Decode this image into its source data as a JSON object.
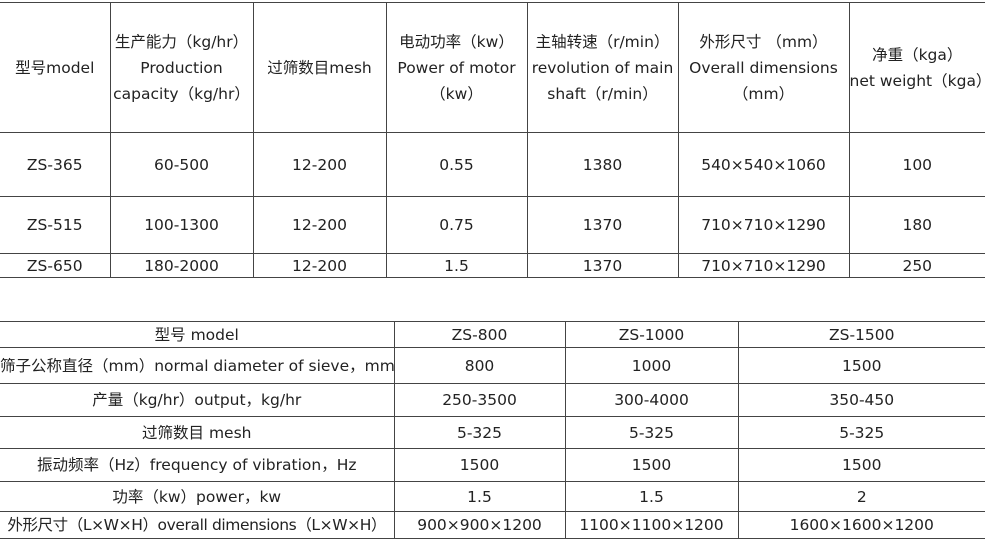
{
  "table1": {
    "headers": [
      [
        "型号model"
      ],
      [
        "生产能力（kg/hr）",
        "Production",
        "capacity（kg/hr）"
      ],
      [
        "过筛数目mesh"
      ],
      [
        "电动功率（kw）",
        "Power of motor",
        "（kw）"
      ],
      [
        "主轴转速（r/min）",
        "revolution of main",
        "shaft（r/min）"
      ],
      [
        "外形尺寸 （mm）",
        "Overall dimensions",
        "（mm）"
      ],
      [
        "净重（kga）",
        "net weight（kga）"
      ]
    ],
    "rows": [
      [
        "ZS-365",
        "60-500",
        "12-200",
        "0.55",
        "1380",
        "540×540×1060",
        "100"
      ],
      [
        "ZS-515",
        "100-1300",
        "12-200",
        "0.75",
        "1370",
        "710×710×1290",
        "180"
      ],
      [
        "ZS-650",
        "180-2000",
        "12-200",
        "1.5",
        "1370",
        "710×710×1290",
        "250"
      ]
    ]
  },
  "table2": {
    "rows": [
      [
        "型号 model",
        "ZS-800",
        "ZS-1000",
        "ZS-1500"
      ],
      [
        "筛子公称直径（mm）normal diameter of sieve，mm",
        "800",
        "1000",
        "1500"
      ],
      [
        "产量（kg/hr）output，kg/hr",
        "250-3500",
        "300-4000",
        "350-450"
      ],
      [
        "过筛数目 mesh",
        "5-325",
        "5-325",
        "5-325"
      ],
      [
        "振动频率（Hz）frequency of vibration，Hz",
        "1500",
        "1500",
        "1500"
      ],
      [
        "功率（kw）power，kw",
        "1.5",
        "1.5",
        "2"
      ],
      [
        "外形尺寸（L×W×H）overall dimensions（L×W×H）",
        "900×900×1200",
        "1100×1100×1200",
        "1600×1600×1200"
      ]
    ]
  }
}
